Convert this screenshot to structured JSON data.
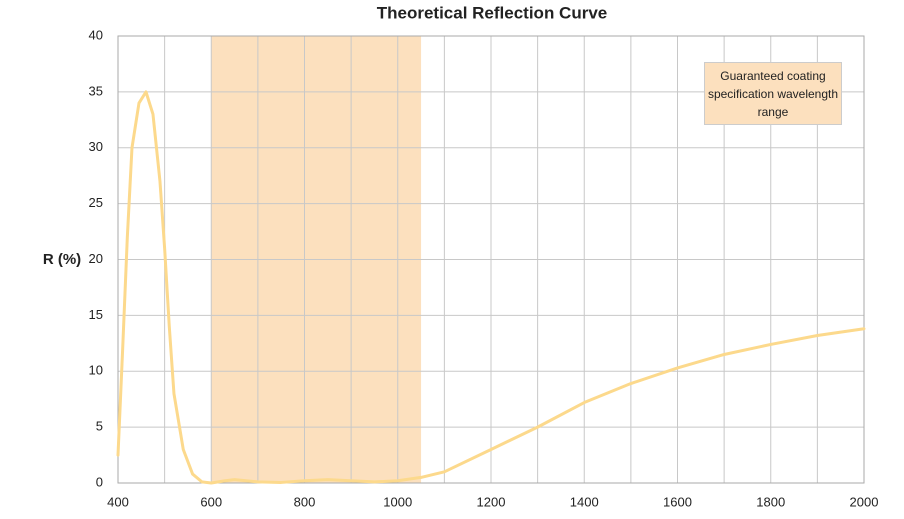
{
  "chart_data": {
    "type": "line",
    "title": "Theoretical Reflection Curve",
    "y_label": "R (%)",
    "x": [
      400,
      410,
      420,
      430,
      445,
      460,
      475,
      490,
      500,
      510,
      520,
      540,
      560,
      580,
      600,
      630,
      650,
      700,
      750,
      800,
      850,
      900,
      950,
      1000,
      1050,
      1100,
      1200,
      1300,
      1400,
      1500,
      1600,
      1700,
      1800,
      1900,
      2000
    ],
    "series": [
      {
        "name": "R",
        "color": "#fcd98c",
        "values": [
          2.5,
          12,
          22,
          30,
          34,
          35,
          33,
          27,
          21,
          14,
          8,
          3,
          0.8,
          0.1,
          0,
          0.2,
          0.3,
          0.1,
          0.05,
          0.2,
          0.3,
          0.2,
          0.1,
          0.2,
          0.5,
          1,
          3,
          5,
          7.2,
          8.9,
          10.3,
          11.5,
          12.4,
          13.2,
          13.8
        ]
      }
    ],
    "xlim": [
      400,
      2000
    ],
    "ylim": [
      0,
      40
    ],
    "xticks": [
      400,
      600,
      800,
      1000,
      1200,
      1400,
      1600,
      1800,
      2000
    ],
    "x_minor_grid": [
      500,
      700,
      900,
      1100,
      1300,
      1500,
      1700,
      1900
    ],
    "yticks": [
      0,
      5,
      10,
      15,
      20,
      25,
      30,
      35,
      40
    ],
    "grid": true,
    "band": {
      "range": [
        600,
        1050
      ],
      "color": "#fce0be",
      "label": "Guaranteed coating specification wavelength range"
    }
  }
}
